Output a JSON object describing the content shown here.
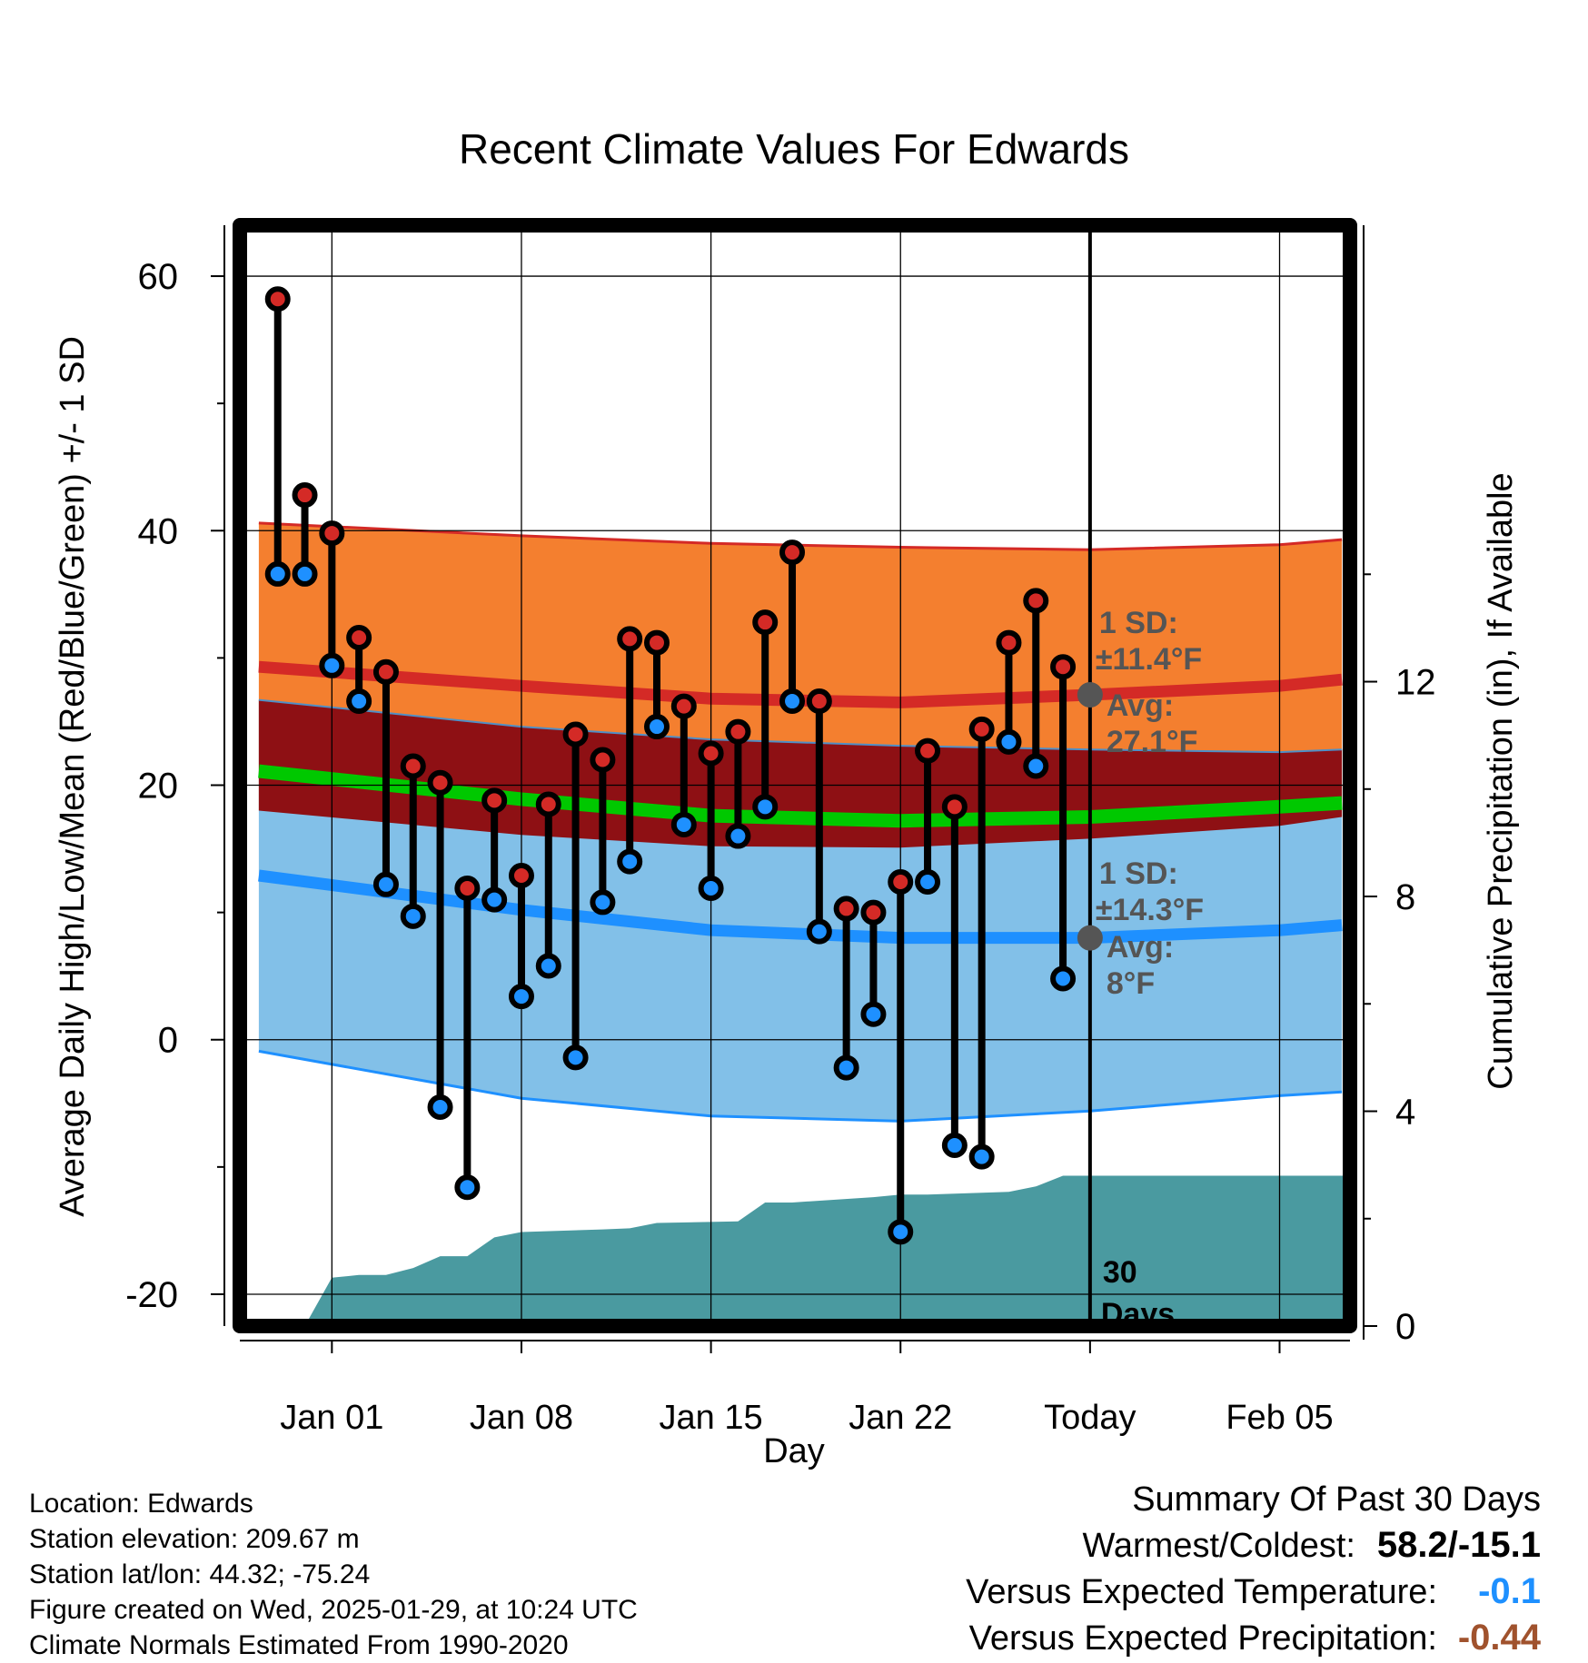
{
  "chart_data": {
    "type": "range-bar-with-bands",
    "title": "Recent Climate Values For Edwards",
    "xlabel": "Day",
    "ylabel_left": "Average Daily High/Low/Mean (Red/Blue/Green) +/- 1 SD",
    "ylabel_right": "Cumulative Precipitation (in), If Available",
    "ylim_left": [
      -22.5,
      64
    ],
    "ylim_right": [
      0,
      20.5
    ],
    "xlim_days": [
      -3.4,
      37.6
    ],
    "left_ticks": [
      "60",
      "40",
      "20",
      "0",
      "-20"
    ],
    "left_tick_values": [
      60,
      40,
      20,
      0,
      -20
    ],
    "right_ticks": [
      "12",
      "8",
      "4",
      "0"
    ],
    "right_tick_values": [
      12,
      8,
      4,
      0
    ],
    "x_ticks": [
      {
        "label": "Jan 01",
        "day": 0
      },
      {
        "label": "Jan 08",
        "day": 7
      },
      {
        "label": "Jan 15",
        "day": 14
      },
      {
        "label": "Jan 22",
        "day": 21
      },
      {
        "label": "Today",
        "day": 28
      },
      {
        "label": "Feb 05",
        "day": 35
      }
    ],
    "today_day": 28,
    "days_label": [
      "30",
      "Days"
    ],
    "daily": [
      {
        "day": -2,
        "high": 58.2,
        "low": 36.6
      },
      {
        "day": -1,
        "high": 42.8,
        "low": 36.6
      },
      {
        "day": 0,
        "high": 39.8,
        "low": 29.4
      },
      {
        "day": 1,
        "high": 31.6,
        "low": 26.6
      },
      {
        "day": 2,
        "high": 28.9,
        "low": 12.2
      },
      {
        "day": 3,
        "high": 21.5,
        "low": 9.7
      },
      {
        "day": 4,
        "high": 20.2,
        "low": -5.3
      },
      {
        "day": 5,
        "high": 11.9,
        "low": -11.6
      },
      {
        "day": 6,
        "high": 18.8,
        "low": 11.0
      },
      {
        "day": 7,
        "high": 12.9,
        "low": 3.4
      },
      {
        "day": 8,
        "high": 18.5,
        "low": 5.8
      },
      {
        "day": 9,
        "high": 24.0,
        "low": -1.4
      },
      {
        "day": 10,
        "high": 22.0,
        "low": 10.8
      },
      {
        "day": 11,
        "high": 31.5,
        "low": 14.0
      },
      {
        "day": 12,
        "high": 31.2,
        "low": 24.6
      },
      {
        "day": 13,
        "high": 26.2,
        "low": 16.9
      },
      {
        "day": 14,
        "high": 22.5,
        "low": 11.9
      },
      {
        "day": 15,
        "high": 24.2,
        "low": 16.0
      },
      {
        "day": 16,
        "high": 32.8,
        "low": 18.3
      },
      {
        "day": 17,
        "high": 38.3,
        "low": 26.6
      },
      {
        "day": 18,
        "high": 26.6,
        "low": 8.5
      },
      {
        "day": 19,
        "high": 10.3,
        "low": -2.2
      },
      {
        "day": 20,
        "high": 10.0,
        "low": 2.0
      },
      {
        "day": 21,
        "high": 12.4,
        "low": -15.1
      },
      {
        "day": 22,
        "high": 22.7,
        "low": 12.4
      },
      {
        "day": 23,
        "high": 18.3,
        "low": -8.3
      },
      {
        "day": 24,
        "high": 24.4,
        "low": -9.2
      },
      {
        "day": 25,
        "high": 31.2,
        "low": 23.4
      },
      {
        "day": 26,
        "high": 34.5,
        "low": 21.5
      },
      {
        "day": 27,
        "high": 29.3,
        "low": 4.8
      }
    ],
    "normals": {
      "days": [
        -2.7,
        7,
        14,
        21,
        28,
        35,
        37.3
      ],
      "high_avg": [
        29.3,
        27.8,
        26.8,
        26.5,
        27.1,
        27.8,
        28.3
      ],
      "high_upper": [
        40.6,
        39.6,
        39.0,
        38.7,
        38.5,
        38.9,
        39.3
      ],
      "high_lower": [
        18.0,
        16.1,
        15.2,
        15.1,
        15.8,
        16.8,
        17.5
      ],
      "mean_avg": [
        21.1,
        18.9,
        17.6,
        17.2,
        17.5,
        18.3,
        18.6
      ],
      "low_avg": [
        12.9,
        10.2,
        8.6,
        8.0,
        8.0,
        8.6,
        9.0
      ],
      "low_upper": [
        26.7,
        24.6,
        23.6,
        23.1,
        22.8,
        22.6,
        22.8
      ],
      "low_lower": [
        -0.9,
        -4.6,
        -6.0,
        -6.4,
        -5.6,
        -4.4,
        -4.1
      ]
    },
    "precip_cumulative": {
      "days": [
        -1,
        0,
        1,
        2,
        3,
        4,
        5,
        6,
        7,
        10,
        11,
        12,
        15,
        16,
        17,
        20,
        21,
        22,
        25,
        26,
        27,
        37.6
      ],
      "values": [
        0,
        0.9,
        0.95,
        0.95,
        1.08,
        1.3,
        1.3,
        1.65,
        1.75,
        1.8,
        1.82,
        1.92,
        1.95,
        2.3,
        2.3,
        2.4,
        2.45,
        2.45,
        2.5,
        2.6,
        2.8,
        2.8
      ]
    },
    "annotations": {
      "high": {
        "sd_title": "1 SD:",
        "sd_value": "±11.4°F",
        "avg_title": "Avg:",
        "avg_value": "27.1°F",
        "marker_value": 27.1
      },
      "low": {
        "sd_title": "1 SD:",
        "sd_value": "±14.3°F",
        "avg_title": "Avg:",
        "avg_value": "8°F",
        "marker_value": 8.0
      }
    },
    "colors": {
      "high_band": "#f47f2f",
      "high_line": "#d42a26",
      "low_band": "#82c0e8",
      "low_line": "#1e90ff",
      "overlap_band": "#8e1014",
      "mean_line": "#00c800",
      "precip": "#4a9aa0",
      "high_dot": "#d42a26",
      "low_dot": "#1e90ff",
      "annotation": "#555555"
    }
  },
  "info": {
    "location": "Location: Edwards",
    "elevation": "Station elevation: 209.67 m",
    "latlon": "Station lat/lon: 44.32; -75.24",
    "created": "Figure created on Wed, 2025-01-29, at 10:24 UTC",
    "normals": "Climate Normals Estimated From 1990-2020"
  },
  "summary": {
    "title": "Summary Of Past 30 Days",
    "warmest_coldest_label": "Warmest/Coldest:",
    "warmest_coldest_value": "58.2/-15.1",
    "temp_label": "Versus Expected Temperature:",
    "temp_value": "-0.1",
    "temp_color": "#1e90ff",
    "precip_label": "Versus Expected Precipitation:",
    "precip_value": "-0.44",
    "precip_color": "#a0522d"
  }
}
